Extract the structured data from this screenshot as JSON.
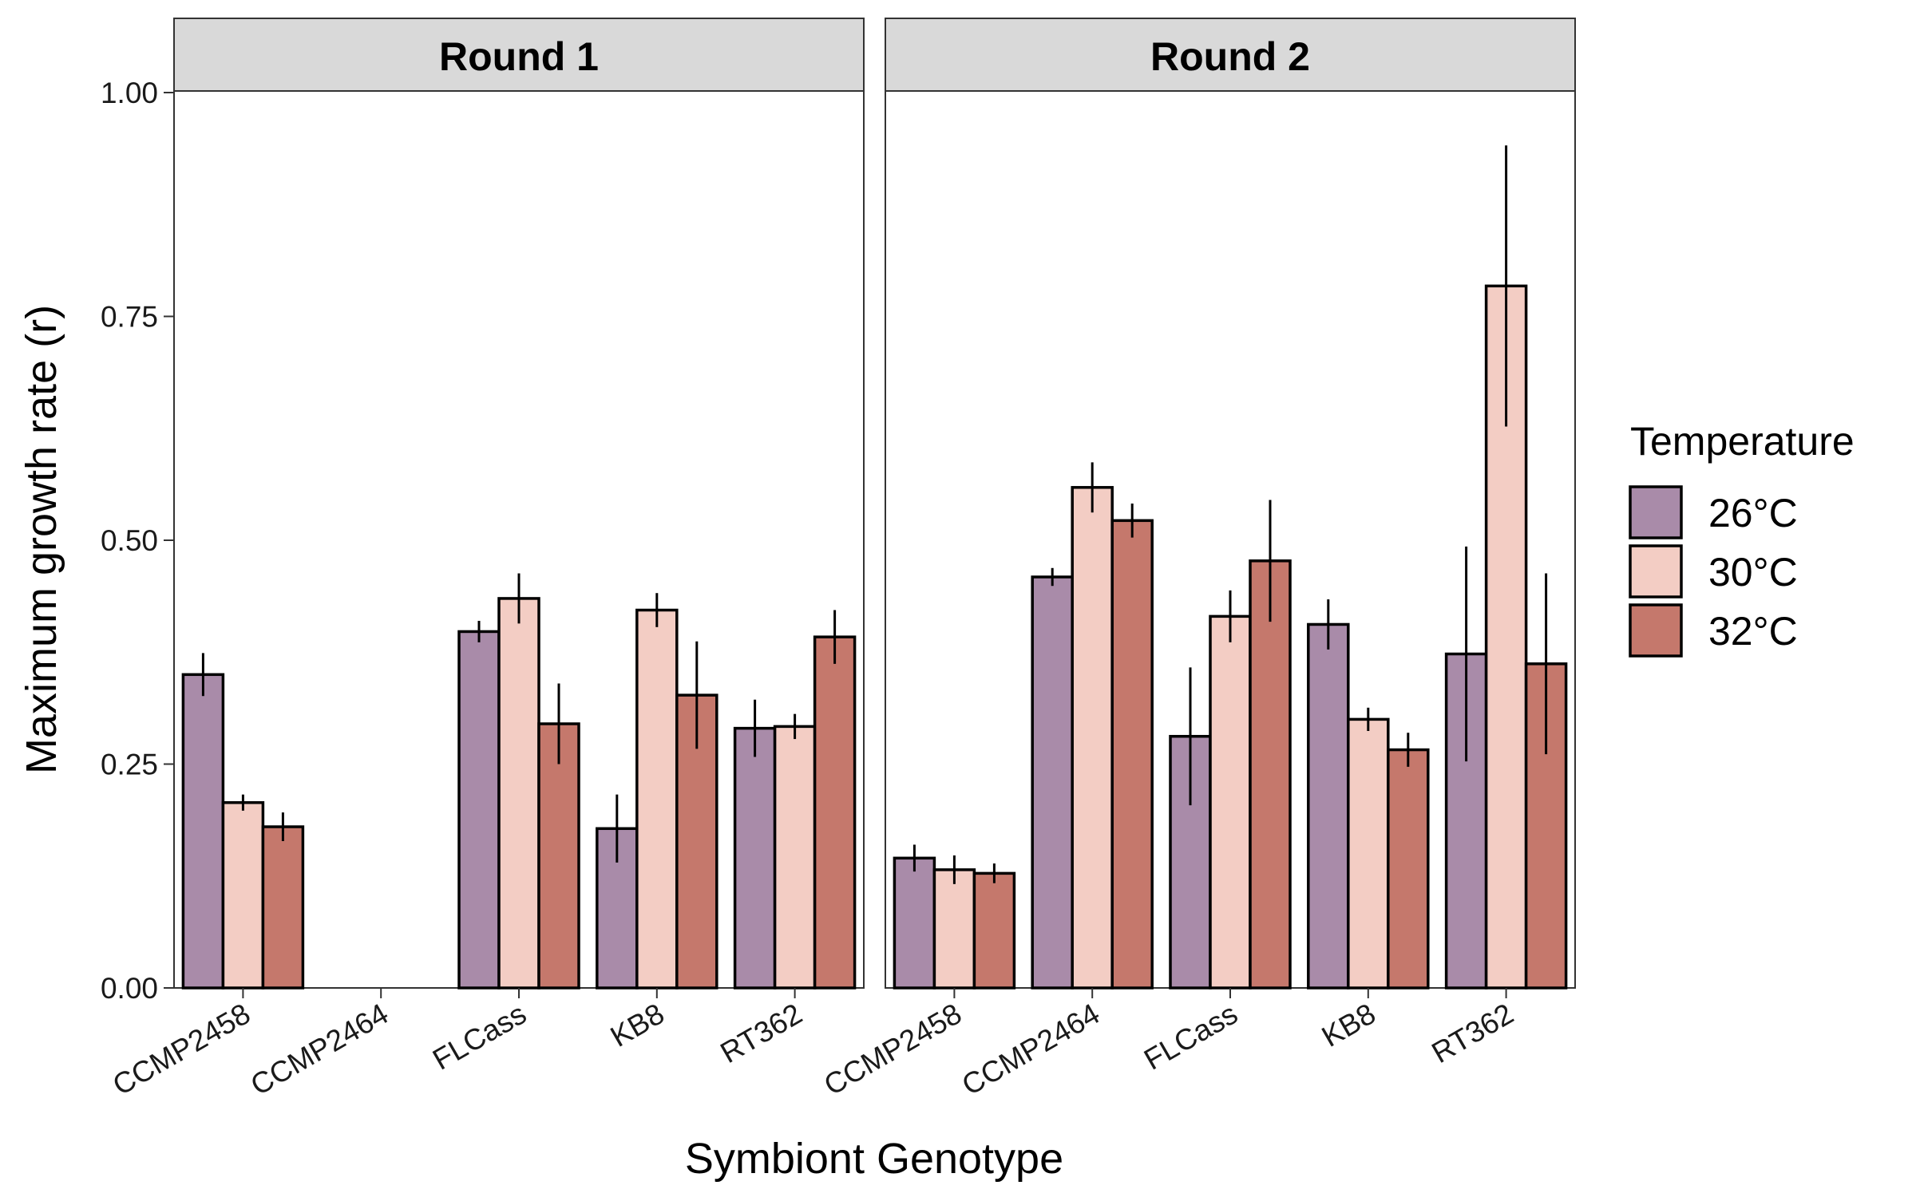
{
  "chart_data": {
    "type": "bar",
    "facet_by": "Round",
    "facets": [
      {
        "label": "Round 1",
        "categories": [
          "CCMP2458",
          "CCMP2464",
          "FLCass",
          "KB8",
          "RT362"
        ],
        "series": [
          {
            "name": "26°C",
            "values": [
              0.35,
              null,
              0.398,
              0.178,
              0.29
            ],
            "errors": [
              0.024,
              null,
              0.012,
              0.038,
              0.032
            ]
          },
          {
            "name": "30°C",
            "values": [
              0.207,
              null,
              0.435,
              0.422,
              0.292
            ],
            "errors": [
              0.009,
              null,
              0.028,
              0.019,
              0.014
            ]
          },
          {
            "name": "32°C",
            "values": [
              0.18,
              null,
              0.295,
              0.327,
              0.392
            ],
            "errors": [
              0.016,
              null,
              0.045,
              0.06,
              0.03
            ]
          }
        ]
      },
      {
        "label": "Round 2",
        "categories": [
          "CCMP2458",
          "CCMP2464",
          "FLCass",
          "KB8",
          "RT362"
        ],
        "series": [
          {
            "name": "26°C",
            "values": [
              0.145,
              0.459,
              0.281,
              0.406,
              0.373
            ],
            "errors": [
              0.015,
              0.01,
              0.077,
              0.028,
              0.12
            ]
          },
          {
            "name": "30°C",
            "values": [
              0.132,
              0.559,
              0.415,
              0.3,
              0.784
            ],
            "errors": [
              0.016,
              0.028,
              0.029,
              0.013,
              0.157
            ]
          },
          {
            "name": "32°C",
            "values": [
              0.128,
              0.522,
              0.477,
              0.266,
              0.362
            ],
            "errors": [
              0.011,
              0.019,
              0.068,
              0.019,
              0.101
            ]
          }
        ]
      }
    ],
    "xlabel": "Symbiont Genotype",
    "ylabel": "Maximum growth rate (r)",
    "ylim": [
      0,
      1.0
    ],
    "yticks": [
      0.0,
      0.25,
      0.5,
      0.75,
      1.0
    ],
    "ytick_labels": [
      "0.00",
      "0.25",
      "0.50",
      "0.75",
      "1.00"
    ],
    "legend": {
      "title": "Temperature",
      "placement": "right",
      "entries": [
        "26°C",
        "30°C",
        "32°C"
      ]
    },
    "colors": [
      "#a98ba9",
      "#f3cdc4",
      "#c5786c"
    ],
    "strip_color": "#d9d9d9",
    "grid": false
  }
}
